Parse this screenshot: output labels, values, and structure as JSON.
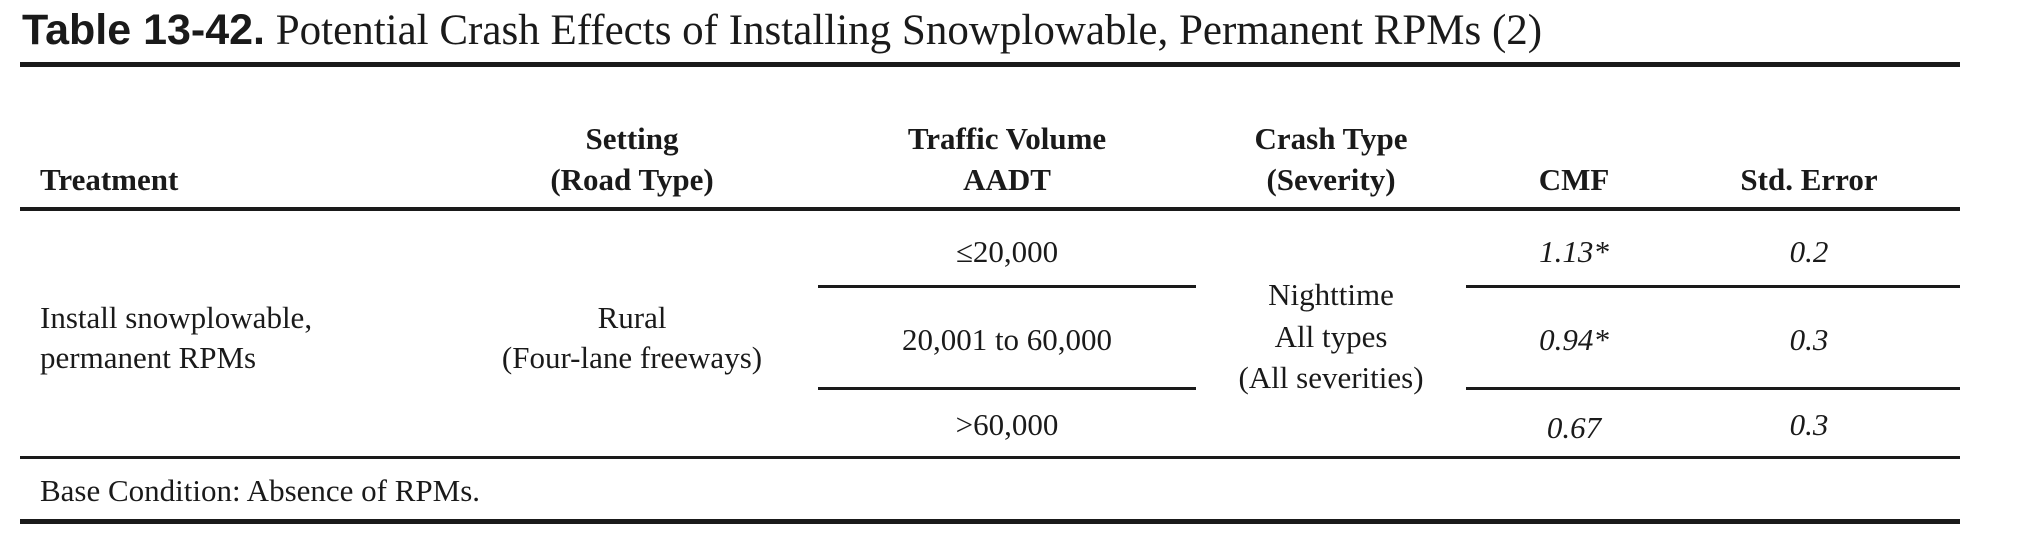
{
  "table": {
    "label": "Table 13-42.",
    "title": "Potential Crash Effects of Installing Snowplowable, Permanent RPMs (2)",
    "headers": {
      "treatment": "Treatment",
      "setting_l1": "Setting",
      "setting_l2": "(Road Type)",
      "volume_l1": "Traffic Volume",
      "volume_l2": "AADT",
      "crash_l1": "Crash Type",
      "crash_l2": "(Severity)",
      "cmf": "CMF",
      "std_error": "Std. Error"
    },
    "treatment": [
      "Install snowplowable,",
      "permanent RPMs"
    ],
    "setting": [
      "Rural",
      "(Four-lane freeways)"
    ],
    "crash_type": [
      "Nighttime",
      "All types",
      "(All severities)"
    ],
    "rows": [
      {
        "volume": "≤20,000",
        "cmf": "1.13*",
        "std_error": "0.2"
      },
      {
        "volume": "20,001 to 60,000",
        "cmf": "0.94*",
        "std_error": "0.3"
      },
      {
        "volume": ">60,000",
        "cmf": "0.67",
        "std_error": "0.3"
      }
    ],
    "footnote": "Base Condition: Absence of RPMs."
  }
}
